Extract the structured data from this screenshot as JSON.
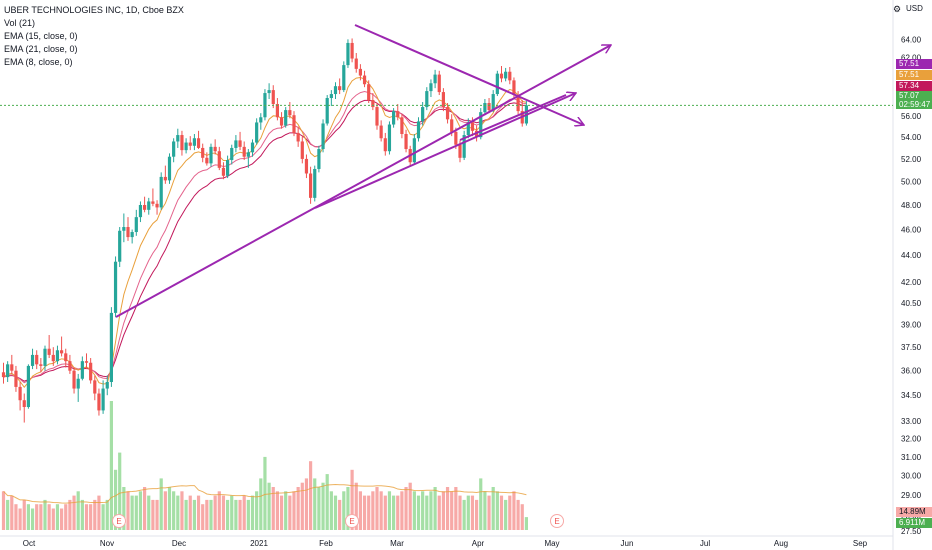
{
  "legend": {
    "title": "UBER TECHNOLOGIES INC, 1D, Cboe BZX",
    "vol": "Vol (21)",
    "ema1": "EMA (15, close, 0)",
    "ema2": "EMA (21, close, 0)",
    "ema3": "EMA (8, close, 0)"
  },
  "currency": "USD",
  "price_labels": {
    "ema8": "57.51",
    "ema15": "57.51",
    "ema21": "57.34",
    "last_price": "57.07",
    "countdown": "02:59:47",
    "vol_ma": "14.89M",
    "vol": "6.911M",
    "partial_tick": "27.50"
  },
  "colors": {
    "up": "#26a69a",
    "down": "#ef5350",
    "vol_up": "#a5dfa6",
    "vol_down": "#f7a9a7",
    "ema8": "#e9a03b",
    "ema15": "#e4648d",
    "ema21": "#c2185b",
    "trendline": "#9c27b0",
    "last_price_line": "#4caf50"
  },
  "earnings_marker": "E",
  "chart_data": {
    "type": "candlestick",
    "title": "UBER TECHNOLOGIES INC, 1D, Cboe BZX",
    "ylim": [
      27.0,
      66.0
    ],
    "y_scale": "log",
    "grid": false,
    "y_ticks": [
      "64.00",
      "62.00",
      "60.00",
      "58.00",
      "56.00",
      "54.00",
      "52.00",
      "50.00",
      "48.00",
      "46.00",
      "44.00",
      "42.00",
      "40.50",
      "39.00",
      "37.50",
      "36.00",
      "34.50",
      "33.00",
      "32.00",
      "31.00",
      "30.00",
      "29.00",
      "28.00"
    ],
    "x_ticks": [
      "Oct",
      "Nov",
      "Dec",
      "2021",
      "Feb",
      "Mar",
      "Apr",
      "May",
      "Jun",
      "Jul",
      "Aug",
      "Sep"
    ],
    "ohlc_start": "2020-09-28",
    "ohlc": [
      [
        35.9,
        36.5,
        35.2,
        35.6
      ],
      [
        35.6,
        36.6,
        35.3,
        36.4
      ],
      [
        36.4,
        37.0,
        35.8,
        36.0
      ],
      [
        36.0,
        36.3,
        34.7,
        35.0
      ],
      [
        35.0,
        35.3,
        33.6,
        34.2
      ],
      [
        34.2,
        34.6,
        32.9,
        33.8
      ],
      [
        33.8,
        36.4,
        33.7,
        36.3
      ],
      [
        36.3,
        37.4,
        36.1,
        37.0
      ],
      [
        37.0,
        37.3,
        36.1,
        36.4
      ],
      [
        36.4,
        36.8,
        35.9,
        36.3
      ],
      [
        36.3,
        37.6,
        36.0,
        37.4
      ],
      [
        37.4,
        38.3,
        36.8,
        37.0
      ],
      [
        37.0,
        37.5,
        36.3,
        36.6
      ],
      [
        36.6,
        37.6,
        36.4,
        37.3
      ],
      [
        37.3,
        38.2,
        36.9,
        37.1
      ],
      [
        37.1,
        37.4,
        36.2,
        36.6
      ],
      [
        36.6,
        37.0,
        35.8,
        36.0
      ],
      [
        36.0,
        36.2,
        34.6,
        34.9
      ],
      [
        34.9,
        35.8,
        34.1,
        35.5
      ],
      [
        35.5,
        36.9,
        35.4,
        36.6
      ],
      [
        36.6,
        37.1,
        36.1,
        36.5
      ],
      [
        36.5,
        36.8,
        35.2,
        35.4
      ],
      [
        35.4,
        35.7,
        34.2,
        34.6
      ],
      [
        34.6,
        34.9,
        33.3,
        33.6
      ],
      [
        33.6,
        35.4,
        33.4,
        34.9
      ],
      [
        34.9,
        35.7,
        34.5,
        35.3
      ],
      [
        35.3,
        40.2,
        35.0,
        39.8
      ],
      [
        39.8,
        43.9,
        39.5,
        43.5
      ],
      [
        43.5,
        46.2,
        43.1,
        45.9
      ],
      [
        45.9,
        47.3,
        45.0,
        46.2
      ],
      [
        46.2,
        47.0,
        45.1,
        45.4
      ],
      [
        45.4,
        46.0,
        44.9,
        45.8
      ],
      [
        45.8,
        47.6,
        45.5,
        47.0
      ],
      [
        47.0,
        48.3,
        46.6,
        48.0
      ],
      [
        48.0,
        48.7,
        47.4,
        47.6
      ],
      [
        47.6,
        48.6,
        47.2,
        48.3
      ],
      [
        48.3,
        49.4,
        47.9,
        48.1
      ],
      [
        48.1,
        48.4,
        47.2,
        47.8
      ],
      [
        47.8,
        50.8,
        47.6,
        50.4
      ],
      [
        50.4,
        51.4,
        49.8,
        50.1
      ],
      [
        50.1,
        52.5,
        49.8,
        52.2
      ],
      [
        52.2,
        53.9,
        51.7,
        53.6
      ],
      [
        53.6,
        54.8,
        53.0,
        54.2
      ],
      [
        54.2,
        54.6,
        52.3,
        52.8
      ],
      [
        52.8,
        53.9,
        52.5,
        53.5
      ],
      [
        53.5,
        54.1,
        52.8,
        53.2
      ],
      [
        53.2,
        54.3,
        52.8,
        53.9
      ],
      [
        53.9,
        54.6,
        52.9,
        53.0
      ],
      [
        53.0,
        53.4,
        51.7,
        52.1
      ],
      [
        52.1,
        52.6,
        51.4,
        51.6
      ],
      [
        51.6,
        53.4,
        51.3,
        53.1
      ],
      [
        53.1,
        53.8,
        52.4,
        52.7
      ],
      [
        52.7,
        53.1,
        51.0,
        51.2
      ],
      [
        51.2,
        51.7,
        50.2,
        50.5
      ],
      [
        50.5,
        52.3,
        50.3,
        51.9
      ],
      [
        51.9,
        53.3,
        51.5,
        53.0
      ],
      [
        53.0,
        54.2,
        52.6,
        53.7
      ],
      [
        53.7,
        54.5,
        52.8,
        53.1
      ],
      [
        53.1,
        53.6,
        51.9,
        52.2
      ],
      [
        52.2,
        52.9,
        51.2,
        52.6
      ],
      [
        52.6,
        53.8,
        52.2,
        53.5
      ],
      [
        53.5,
        55.8,
        53.3,
        55.4
      ],
      [
        55.4,
        56.3,
        54.7,
        55.9
      ],
      [
        55.9,
        58.7,
        55.6,
        58.3
      ],
      [
        58.3,
        59.3,
        57.7,
        58.6
      ],
      [
        58.6,
        59.1,
        56.8,
        57.2
      ],
      [
        57.2,
        57.8,
        55.6,
        55.9
      ],
      [
        55.9,
        56.4,
        54.8,
        55.1
      ],
      [
        55.1,
        56.9,
        54.9,
        56.6
      ],
      [
        56.6,
        57.4,
        55.8,
        56.1
      ],
      [
        56.1,
        56.5,
        54.1,
        54.4
      ],
      [
        54.4,
        55.0,
        53.1,
        53.6
      ],
      [
        53.6,
        54.1,
        51.6,
        52.0
      ],
      [
        52.0,
        52.4,
        50.3,
        50.7
      ],
      [
        50.7,
        51.3,
        48.1,
        48.6
      ],
      [
        48.6,
        51.4,
        48.3,
        51.1
      ],
      [
        51.1,
        53.2,
        50.8,
        52.9
      ],
      [
        52.9,
        55.7,
        52.6,
        55.3
      ],
      [
        55.3,
        58.1,
        55.1,
        57.8
      ],
      [
        57.8,
        58.6,
        57.0,
        58.2
      ],
      [
        58.2,
        59.4,
        57.7,
        59.0
      ],
      [
        59.0,
        59.8,
        58.2,
        58.6
      ],
      [
        58.6,
        61.6,
        58.4,
        61.2
      ],
      [
        61.2,
        64.0,
        60.9,
        63.6
      ],
      [
        63.6,
        64.1,
        61.5,
        61.9
      ],
      [
        61.9,
        62.5,
        60.4,
        60.8
      ],
      [
        60.8,
        61.3,
        59.6,
        60.1
      ],
      [
        60.1,
        60.6,
        58.9,
        59.2
      ],
      [
        59.2,
        59.6,
        57.3,
        57.6
      ],
      [
        57.6,
        58.3,
        56.6,
        56.9
      ],
      [
        56.9,
        57.3,
        54.7,
        55.1
      ],
      [
        55.1,
        55.6,
        53.6,
        53.9
      ],
      [
        53.9,
        54.4,
        52.3,
        52.7
      ],
      [
        52.7,
        55.5,
        52.4,
        55.2
      ],
      [
        55.2,
        56.8,
        54.9,
        56.5
      ],
      [
        56.5,
        57.2,
        55.6,
        55.9
      ],
      [
        55.9,
        56.2,
        53.9,
        54.3
      ],
      [
        54.3,
        54.7,
        52.6,
        52.9
      ],
      [
        52.9,
        53.2,
        51.3,
        51.7
      ],
      [
        51.7,
        54.3,
        51.5,
        53.9
      ],
      [
        53.9,
        55.9,
        53.6,
        55.5
      ],
      [
        55.5,
        57.4,
        55.1,
        56.9
      ],
      [
        56.9,
        58.9,
        56.6,
        58.5
      ],
      [
        58.5,
        59.7,
        57.9,
        59.3
      ],
      [
        59.3,
        60.7,
        58.8,
        60.2
      ],
      [
        60.2,
        60.6,
        58.1,
        58.4
      ],
      [
        58.4,
        58.8,
        56.5,
        56.9
      ],
      [
        56.9,
        57.3,
        55.3,
        55.7
      ],
      [
        55.7,
        56.2,
        54.1,
        54.5
      ],
      [
        54.5,
        54.9,
        52.9,
        53.3
      ],
      [
        53.3,
        53.7,
        51.7,
        52.1
      ],
      [
        52.1,
        54.6,
        51.9,
        54.2
      ],
      [
        54.2,
        55.8,
        53.9,
        55.4
      ],
      [
        55.4,
        55.9,
        54.1,
        54.6
      ],
      [
        54.6,
        55.1,
        53.6,
        54.0
      ],
      [
        54.0,
        56.8,
        53.8,
        56.4
      ],
      [
        56.4,
        57.7,
        56.1,
        57.3
      ],
      [
        57.3,
        57.8,
        56.3,
        56.6
      ],
      [
        56.6,
        58.6,
        56.4,
        58.2
      ],
      [
        58.2,
        60.6,
        58.0,
        60.3
      ],
      [
        60.3,
        61.1,
        59.4,
        59.8
      ],
      [
        59.8,
        60.9,
        59.5,
        60.5
      ],
      [
        60.5,
        61.0,
        59.2,
        59.6
      ],
      [
        59.6,
        59.9,
        57.8,
        58.1
      ],
      [
        58.1,
        58.5,
        56.2,
        56.5
      ],
      [
        56.5,
        57.6,
        55.0,
        55.3
      ],
      [
        55.3,
        57.5,
        55.1,
        57.07
      ]
    ],
    "volume": [
      9,
      7,
      8,
      6,
      5,
      7,
      6,
      5,
      6,
      6,
      7,
      6,
      5,
      6,
      5,
      6,
      7,
      8,
      9,
      7,
      6,
      6,
      7,
      8,
      6,
      7,
      30,
      14,
      18,
      10,
      9,
      8,
      8,
      9,
      10,
      8,
      7,
      7,
      12,
      9,
      10,
      9,
      8,
      9,
      7,
      8,
      7,
      8,
      6,
      7,
      7,
      8,
      9,
      8,
      7,
      8,
      7,
      7,
      8,
      7,
      8,
      9,
      12,
      17,
      11,
      10,
      9,
      8,
      9,
      8,
      9,
      10,
      11,
      12,
      16,
      12,
      10,
      11,
      13,
      9,
      8,
      7,
      9,
      10,
      14,
      11,
      9,
      8,
      8,
      9,
      10,
      9,
      8,
      9,
      8,
      8,
      9,
      10,
      11,
      9,
      8,
      9,
      8,
      9,
      10,
      8,
      9,
      10,
      9,
      10,
      8,
      7,
      8,
      8,
      7,
      12,
      9,
      8,
      10,
      9,
      8,
      7,
      8,
      9,
      7,
      6,
      3
    ],
    "ema8": [
      57.51
    ],
    "ema15": [
      57.51
    ],
    "ema21": [
      57.34
    ]
  }
}
